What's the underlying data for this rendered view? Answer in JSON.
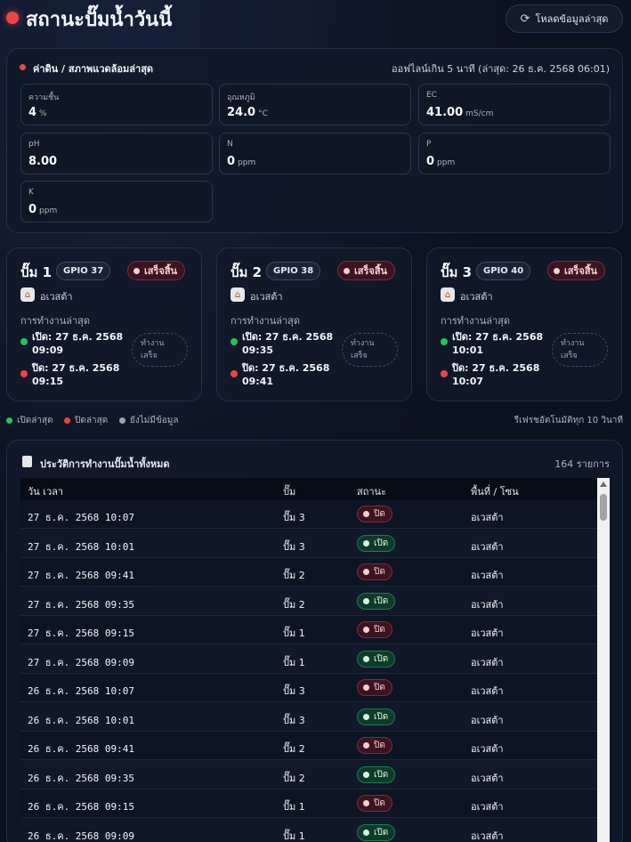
{
  "header": {
    "title": "สถานะปั๊มน้ำวันนี้",
    "reload_icon": "refresh-icon",
    "reload_label": "โหลดข้อมูลล่าสุด"
  },
  "environment": {
    "title": "ค่าดิน / สภาพแวดล้อมล่าสุด",
    "status": "ออฟไลน์เกิน 5 นาที (ล่าสุด: 26 ธ.ค. 2568 06:01)",
    "metrics": [
      {
        "label": "ความชื้น",
        "value": "4",
        "unit": "%"
      },
      {
        "label": "อุณหภูมิ",
        "value": "24.0",
        "unit": "°C"
      },
      {
        "label": "EC",
        "value": "41.00",
        "unit": "mS/cm"
      },
      {
        "label": "pH",
        "value": "8.00",
        "unit": ""
      },
      {
        "label": "N",
        "value": "0",
        "unit": "ppm"
      },
      {
        "label": "P",
        "value": "0",
        "unit": "ppm"
      },
      {
        "label": "K",
        "value": "0",
        "unit": "ppm"
      }
    ]
  },
  "pumps": [
    {
      "name": "ปั๊ม 1",
      "gpio": "GPIO 37",
      "state": "เสร็จสิ้น",
      "zone_icon": "home-icon",
      "zone": "อเวสต้า",
      "last_label": "การทำงานล่าสุด",
      "on_text": "เปิด: 27 ธ.ค. 2568 09:09",
      "off_text": "ปิด: 27 ธ.ค. 2568 09:15",
      "done_label": "ทำงานเสร็จ"
    },
    {
      "name": "ปั๊ม 2",
      "gpio": "GPIO 38",
      "state": "เสร็จสิ้น",
      "zone_icon": "home-icon",
      "zone": "อเวสต้า",
      "last_label": "การทำงานล่าสุด",
      "on_text": "เปิด: 27 ธ.ค. 2568 09:35",
      "off_text": "ปิด: 27 ธ.ค. 2568 09:41",
      "done_label": "ทำงานเสร็จ"
    },
    {
      "name": "ปั๊ม 3",
      "gpio": "GPIO 40",
      "state": "เสร็จสิ้น",
      "zone_icon": "home-icon",
      "zone": "อเวสต้า",
      "last_label": "การทำงานล่าสุด",
      "on_text": "เปิด: 27 ธ.ค. 2568 10:01",
      "off_text": "ปิด: 27 ธ.ค. 2568 10:07",
      "done_label": "ทำงานเสร็จ"
    }
  ],
  "legend": {
    "on": "เปิดล่าสุด",
    "off": "ปิดล่าสุด",
    "none": "ยังไม่มีข้อมูล",
    "refresh_note": "รีเฟรชอัตโนมัติทุก 10 วินาที"
  },
  "history": {
    "icon": "document-icon",
    "title": "ประวัติการทำงานปั๊มน้ำทั้งหมด",
    "count": "164 รายการ",
    "columns": [
      "วัน เวลา",
      "ปั๊ม",
      "สถานะ",
      "พื้นที่ / โซน"
    ],
    "rows": [
      {
        "time": "27 ธ.ค. 2568 10:07",
        "pump": "ปั๊ม 3",
        "status": "ปิด",
        "state": "off",
        "zone": "อเวสต้า"
      },
      {
        "time": "27 ธ.ค. 2568 10:01",
        "pump": "ปั๊ม 3",
        "status": "เปิด",
        "state": "on",
        "zone": "อเวสต้า"
      },
      {
        "time": "27 ธ.ค. 2568 09:41",
        "pump": "ปั๊ม 2",
        "status": "ปิด",
        "state": "off",
        "zone": "อเวสต้า"
      },
      {
        "time": "27 ธ.ค. 2568 09:35",
        "pump": "ปั๊ม 2",
        "status": "เปิด",
        "state": "on",
        "zone": "อเวสต้า"
      },
      {
        "time": "27 ธ.ค. 2568 09:15",
        "pump": "ปั๊ม 1",
        "status": "ปิด",
        "state": "off",
        "zone": "อเวสต้า"
      },
      {
        "time": "27 ธ.ค. 2568 09:09",
        "pump": "ปั๊ม 1",
        "status": "เปิด",
        "state": "on",
        "zone": "อเวสต้า"
      },
      {
        "time": "26 ธ.ค. 2568 10:07",
        "pump": "ปั๊ม 3",
        "status": "ปิด",
        "state": "off",
        "zone": "อเวสต้า"
      },
      {
        "time": "26 ธ.ค. 2568 10:01",
        "pump": "ปั๊ม 3",
        "status": "เปิด",
        "state": "on",
        "zone": "อเวสต้า"
      },
      {
        "time": "26 ธ.ค. 2568 09:41",
        "pump": "ปั๊ม 2",
        "status": "ปิด",
        "state": "off",
        "zone": "อเวสต้า"
      },
      {
        "time": "26 ธ.ค. 2568 09:35",
        "pump": "ปั๊ม 2",
        "status": "เปิด",
        "state": "on",
        "zone": "อเวสต้า"
      },
      {
        "time": "26 ธ.ค. 2568 09:15",
        "pump": "ปั๊ม 1",
        "status": "ปิด",
        "state": "off",
        "zone": "อเวสต้า"
      },
      {
        "time": "26 ธ.ค. 2568 09:09",
        "pump": "ปั๊ม 1",
        "status": "เปิด",
        "state": "on",
        "zone": "อเวสต้า"
      }
    ]
  },
  "colors": {
    "on": "#22c55e",
    "off": "#ef4444",
    "none": "#9ca3af",
    "accent": "#ef4444"
  }
}
